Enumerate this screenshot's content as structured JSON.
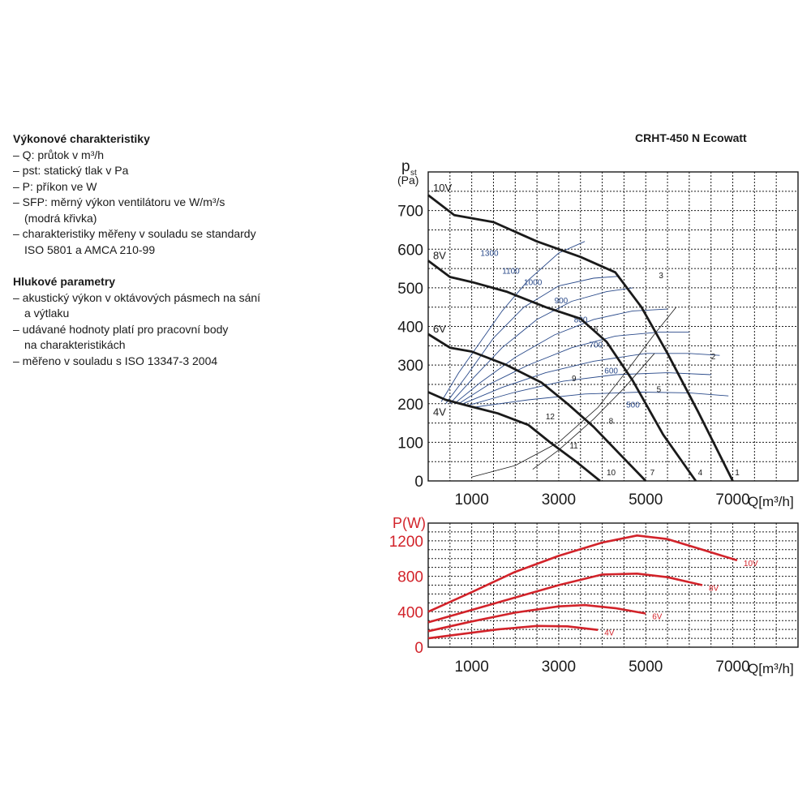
{
  "model_title": "CRHT-450 N Ecowatt",
  "performance": {
    "heading": "Výkonové charakteristiky",
    "items": [
      "– Q: průtok v m³/h",
      "– pst: statický tlak v Pa",
      "– P: příkon ve W",
      "– SFP: měrný výkon ventilátoru ve W/m³/s",
      "(modrá křivka)",
      "– charakteristiky měřeny v souladu se standardy",
      "ISO 5801 a AMCA 210-99"
    ]
  },
  "noise": {
    "heading": "Hlukové parametry",
    "items": [
      "– akustický výkon v oktávových pásmech na sání",
      "a výtlaku",
      "– udávané hodnoty platí pro pracovní body",
      "na charakteristikách",
      "– měřeno v souladu s ISO 13347-3 2004"
    ]
  },
  "colors": {
    "fan_curve": "#1a1a1a",
    "sfp_curve": "#2a4a8a",
    "power_curve": "#d2232a",
    "grid": "#1a1a1a"
  },
  "chart_data": [
    {
      "type": "line",
      "title": "",
      "ylabel_main": "p",
      "ylabel_sub": "st",
      "ylabel_unit": "(Pa)",
      "xlabel": "Q[m³/h]",
      "xlim": [
        0,
        8500
      ],
      "ylim": [
        0,
        800
      ],
      "xticks": [
        1000,
        3000,
        5000,
        7000
      ],
      "yticks": [
        0,
        100,
        200,
        300,
        400,
        500,
        600,
        700
      ],
      "grid": true,
      "series": [
        {
          "name": "10V",
          "points": [
            [
              0,
              740
            ],
            [
              600,
              688
            ],
            [
              1500,
              670
            ],
            [
              2500,
              620
            ],
            [
              3500,
              580
            ],
            [
              4300,
              540
            ],
            [
              4900,
              450
            ],
            [
              5500,
              330
            ],
            [
              6200,
              180
            ],
            [
              7000,
              0
            ]
          ]
        },
        {
          "name": "8V",
          "points": [
            [
              0,
              570
            ],
            [
              500,
              528
            ],
            [
              1000,
              515
            ],
            [
              1800,
              490
            ],
            [
              2700,
              450
            ],
            [
              3500,
              420
            ],
            [
              4100,
              360
            ],
            [
              4700,
              260
            ],
            [
              5400,
              120
            ],
            [
              6150,
              0
            ]
          ]
        },
        {
          "name": "6V",
          "points": [
            [
              0,
              380
            ],
            [
              500,
              345
            ],
            [
              1000,
              335
            ],
            [
              1800,
              300
            ],
            [
              2600,
              255
            ],
            [
              3200,
              200
            ],
            [
              3800,
              140
            ],
            [
              4400,
              70
            ],
            [
              5000,
              0
            ]
          ]
        },
        {
          "name": "4V",
          "points": [
            [
              0,
              230
            ],
            [
              400,
              210
            ],
            [
              900,
              195
            ],
            [
              1600,
              175
            ],
            [
              2300,
              145
            ],
            [
              2800,
              100
            ],
            [
              3400,
              50
            ],
            [
              3950,
              0
            ]
          ]
        }
      ],
      "sfp_curves": [
        {
          "label": "1300",
          "label_at": [
            1200,
            583
          ],
          "points": [
            [
              300,
              205
            ],
            [
              700,
              280
            ],
            [
              1200,
              360
            ],
            [
              1700,
              440
            ],
            [
              2300,
              520
            ],
            [
              3000,
              590
            ],
            [
              3600,
              620
            ]
          ]
        },
        {
          "label": "1100",
          "label_at": [
            1700,
            537
          ],
          "points": [
            [
              400,
              200
            ],
            [
              900,
              275
            ],
            [
              1500,
              370
            ],
            [
              2200,
              450
            ],
            [
              3000,
              505
            ],
            [
              3800,
              525
            ],
            [
              4400,
              530
            ]
          ]
        },
        {
          "label": "1000",
          "label_at": [
            2200,
            507
          ],
          "points": [
            [
              500,
              200
            ],
            [
              1000,
              262
            ],
            [
              1700,
              345
            ],
            [
              2500,
              418
            ],
            [
              3300,
              465
            ],
            [
              4100,
              490
            ],
            [
              4700,
              500
            ]
          ]
        },
        {
          "label": "900",
          "label_at": [
            2900,
            460
          ],
          "points": [
            [
              600,
              200
            ],
            [
              1200,
              255
            ],
            [
              2000,
              320
            ],
            [
              2900,
              378
            ],
            [
              3800,
              418
            ],
            [
              4700,
              440
            ],
            [
              5500,
              445
            ]
          ]
        },
        {
          "label": "800",
          "label_at": [
            3350,
            410
          ],
          "points": [
            [
              700,
              200
            ],
            [
              1400,
              250
            ],
            [
              2300,
              300
            ],
            [
              3300,
              345
            ],
            [
              4300,
              375
            ],
            [
              5300,
              385
            ],
            [
              6000,
              385
            ]
          ]
        },
        {
          "label": "700",
          "label_at": [
            3700,
            345
          ],
          "points": [
            [
              800,
              200
            ],
            [
              1700,
              242
            ],
            [
              2700,
              280
            ],
            [
              3800,
              310
            ],
            [
              5000,
              330
            ],
            [
              6000,
              330
            ],
            [
              6700,
              325
            ]
          ]
        },
        {
          "label": "600",
          "label_at": [
            4050,
            278
          ],
          "points": [
            [
              900,
              195
            ],
            [
              2000,
              230
            ],
            [
              3100,
              258
            ],
            [
              4300,
              275
            ],
            [
              5500,
              280
            ],
            [
              6500,
              275
            ]
          ]
        },
        {
          "label": "500",
          "label_at": [
            4550,
            190
          ],
          "points": [
            [
              1000,
              190
            ],
            [
              2300,
              210
            ],
            [
              3600,
              225
            ],
            [
              4900,
              230
            ],
            [
              6000,
              228
            ],
            [
              6900,
              220
            ]
          ]
        }
      ],
      "system_curves": [
        {
          "points": [
            [
              2400,
              30
            ],
            [
              3000,
              80
            ],
            [
              3800,
              160
            ],
            [
              4500,
              240
            ],
            [
              5200,
              330
            ]
          ]
        },
        {
          "points": [
            [
              1000,
              10
            ],
            [
              2000,
              40
            ],
            [
              3000,
              100
            ],
            [
              3900,
              190
            ],
            [
              4600,
              290
            ],
            [
              5200,
              380
            ],
            [
              5700,
              450
            ]
          ]
        }
      ],
      "point_labels": [
        {
          "label": "1",
          "at": [
            7050,
            15
          ]
        },
        {
          "label": "2",
          "at": [
            6500,
            315
          ]
        },
        {
          "label": "3",
          "at": [
            5300,
            525
          ]
        },
        {
          "label": "4",
          "at": [
            6200,
            15
          ]
        },
        {
          "label": "5",
          "at": [
            5250,
            230
          ]
        },
        {
          "label": "6",
          "at": [
            3800,
            385
          ]
        },
        {
          "label": "7",
          "at": [
            5100,
            15
          ]
        },
        {
          "label": "8",
          "at": [
            4150,
            148
          ]
        },
        {
          "label": "9",
          "at": [
            3300,
            258
          ]
        },
        {
          "label": "10",
          "at": [
            4100,
            15
          ]
        },
        {
          "label": "11",
          "at": [
            3250,
            84
          ]
        },
        {
          "label": "12",
          "at": [
            2700,
            160
          ]
        }
      ]
    },
    {
      "type": "line",
      "title": "",
      "ylabel": "P(W)",
      "xlabel": "Q[m³/h]",
      "xlim": [
        0,
        8500
      ],
      "ylim": [
        0,
        1400
      ],
      "xticks": [
        1000,
        3000,
        5000,
        7000
      ],
      "yticks": [
        0,
        400,
        800,
        1200
      ],
      "grid": true,
      "series": [
        {
          "name": "10V",
          "points": [
            [
              0,
              400
            ],
            [
              1000,
              620
            ],
            [
              2000,
              850
            ],
            [
              3000,
              1030
            ],
            [
              4000,
              1180
            ],
            [
              4800,
              1260
            ],
            [
              5500,
              1220
            ],
            [
              6300,
              1100
            ],
            [
              7100,
              980
            ]
          ]
        },
        {
          "name": "8V",
          "points": [
            [
              0,
              280
            ],
            [
              1000,
              420
            ],
            [
              2000,
              560
            ],
            [
              3000,
              700
            ],
            [
              4000,
              820
            ],
            [
              4800,
              830
            ],
            [
              5500,
              790
            ],
            [
              6300,
              700
            ]
          ]
        },
        {
          "name": "6V",
          "points": [
            [
              0,
              180
            ],
            [
              1000,
              290
            ],
            [
              2000,
              390
            ],
            [
              3000,
              460
            ],
            [
              3600,
              475
            ],
            [
              4300,
              440
            ],
            [
              5000,
              380
            ]
          ]
        },
        {
          "name": "4V",
          "points": [
            [
              0,
              100
            ],
            [
              800,
              150
            ],
            [
              1600,
              200
            ],
            [
              2500,
              240
            ],
            [
              3200,
              235
            ],
            [
              3900,
              195
            ]
          ]
        }
      ]
    }
  ]
}
